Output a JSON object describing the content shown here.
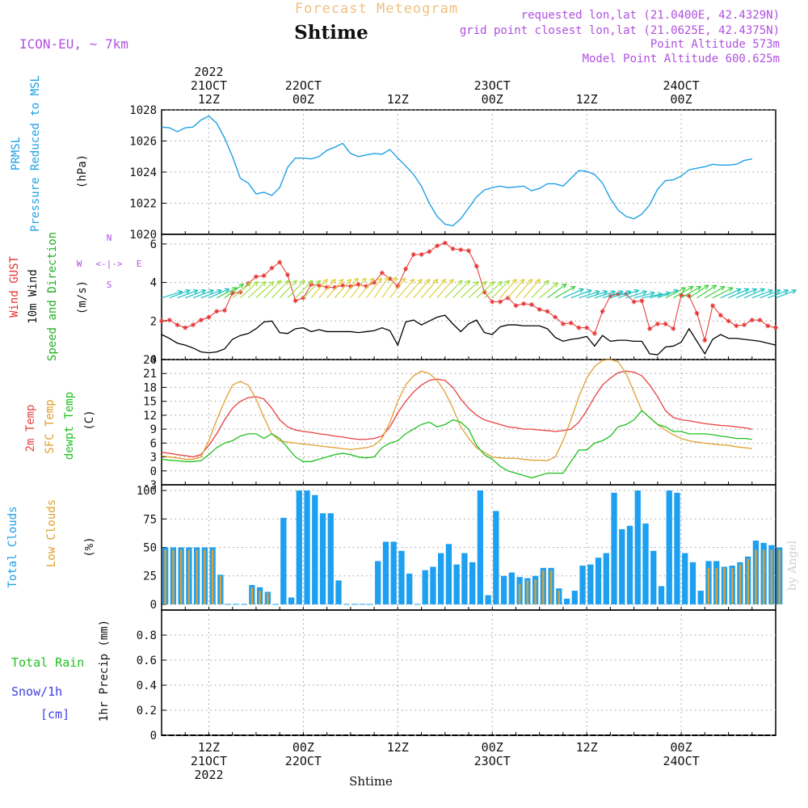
{
  "header": {
    "product": "Forecast Meteogram",
    "station": "Shtime",
    "model": "ICON-EU, ~ 7km",
    "requested": "requested lon,lat (21.0400E, 42.4329N)",
    "gridpoint": "grid point closest lon,lat (21.0625E, 42.4375N)",
    "altitude": "Point Altitude 573m",
    "model_altitude": "Model Point Altitude 600.625m",
    "credit": "by Angel",
    "footer_station": "Shtime"
  },
  "time_axis": {
    "top_labels": [
      {
        "step": 6,
        "lines": [
          "2022",
          "21OCT",
          "12Z"
        ]
      },
      {
        "step": 18,
        "lines": [
          "22OCT",
          "00Z"
        ]
      },
      {
        "step": 30,
        "lines": [
          "12Z"
        ]
      },
      {
        "step": 42,
        "lines": [
          "23OCT",
          "00Z"
        ]
      },
      {
        "step": 54,
        "lines": [
          "12Z"
        ]
      },
      {
        "step": 66,
        "lines": [
          "24OCT",
          "00Z"
        ]
      }
    ],
    "bottom_labels": [
      {
        "step": 6,
        "lines": [
          "12Z",
          "21OCT",
          "2022"
        ]
      },
      {
        "step": 18,
        "lines": [
          "00Z",
          "22OCT"
        ]
      },
      {
        "step": 30,
        "lines": [
          "12Z"
        ]
      },
      {
        "step": 42,
        "lines": [
          "00Z",
          "23OCT"
        ]
      },
      {
        "step": 54,
        "lines": [
          "12Z"
        ]
      },
      {
        "step": 66,
        "lines": [
          "00Z",
          "24OCT"
        ]
      }
    ]
  },
  "colors": {
    "pressure": "#1ea0e6",
    "gust": "#e83030",
    "wind": "#000000",
    "direction": "#20b020",
    "temp": "#e84040",
    "sfc": "#e0a030",
    "dewpt": "#20c020",
    "total_clouds": "#1ea0f0",
    "low_clouds": "#e0a030",
    "rain": "#20c020",
    "snow": "#4040e0",
    "header_purple": "#b050e0",
    "title_orange": "#f0c080"
  },
  "chart_data": [
    {
      "type": "line",
      "id": "pressure",
      "label_lines": [
        "PRMSL",
        "Pressure Reduced to MSL"
      ],
      "ylabel": "(hPa)",
      "ylim": [
        1020,
        1028
      ],
      "yticks": [
        1020,
        1022,
        1024,
        1026,
        1028
      ],
      "x_start": 0,
      "x_step": 1,
      "series": [
        {
          "values": [
            1026.9,
            1026.85,
            1026.6,
            1026.85,
            1026.9,
            1027.35,
            1027.6,
            1027.15,
            1026.2,
            1025.0,
            1023.6,
            1023.3,
            1022.6,
            1022.7,
            1022.5,
            1023.0,
            1024.3,
            1024.9,
            1024.9,
            1024.85,
            1025.0,
            1025.4,
            1025.6,
            1025.85,
            1025.2,
            1025.0,
            1025.1,
            1025.2,
            1025.15,
            1025.45,
            1024.9,
            1024.4,
            1023.85,
            1023.1,
            1022.0,
            1021.15,
            1020.65,
            1020.55,
            1021.0,
            1021.7,
            1022.4,
            1022.85,
            1023.0,
            1023.1,
            1023.0,
            1023.05,
            1023.1,
            1022.8,
            1022.95,
            1023.25,
            1023.25,
            1023.1,
            1023.6,
            1024.1,
            1024.05,
            1023.85,
            1023.3,
            1022.3,
            1021.55,
            1021.15,
            1021.0,
            1021.3,
            1021.9,
            1022.9,
            1023.45,
            1023.5,
            1023.75,
            1024.15,
            1024.25,
            1024.35,
            1024.5,
            1024.45,
            1024.45,
            1024.5,
            1024.75,
            1024.85
          ]
        }
      ]
    },
    {
      "type": "line",
      "id": "wind",
      "label_lines": [
        "Wind GUST",
        "10m Wind",
        "Speed and Direction"
      ],
      "ylabel": "(m/s)",
      "compass": [
        "N",
        "E",
        "S",
        "W"
      ],
      "ylim": [
        0,
        6.5
      ],
      "yticks": [
        0,
        2,
        4,
        6
      ],
      "x_start": 0,
      "x_step": 1,
      "series": [
        {
          "name": "Wind GUST",
          "values": [
            2.0,
            2.05,
            1.8,
            1.65,
            1.8,
            2.05,
            2.2,
            2.5,
            2.55,
            3.45,
            3.5,
            3.95,
            4.3,
            4.35,
            4.75,
            5.05,
            4.4,
            3.05,
            3.2,
            3.9,
            3.85,
            3.75,
            3.75,
            3.85,
            3.8,
            3.9,
            3.8,
            4.0,
            4.5,
            4.2,
            3.8,
            4.7,
            5.45,
            5.45,
            5.6,
            5.9,
            6.05,
            5.75,
            5.7,
            5.65,
            4.85,
            3.5,
            3.0,
            3.0,
            3.2,
            2.8,
            2.9,
            2.85,
            2.6,
            2.5,
            2.2,
            1.85,
            1.9,
            1.65,
            1.65,
            1.35,
            2.5,
            3.3,
            3.4,
            3.4,
            3.0,
            3.05,
            1.6,
            1.85,
            1.85,
            1.6,
            3.35,
            3.3,
            2.4,
            1.0,
            2.8,
            2.3,
            2.0,
            1.75,
            1.8,
            2.05,
            2.05,
            1.75,
            1.65
          ]
        },
        {
          "name": "10m Wind",
          "values": [
            1.3,
            1.1,
            0.85,
            0.75,
            0.6,
            0.4,
            0.35,
            0.4,
            0.55,
            1.05,
            1.25,
            1.35,
            1.6,
            1.95,
            2.0,
            1.4,
            1.35,
            1.6,
            1.65,
            1.45,
            1.55,
            1.45,
            1.45,
            1.45,
            1.45,
            1.4,
            1.45,
            1.5,
            1.65,
            1.5,
            0.75,
            1.95,
            2.05,
            1.8,
            2.0,
            2.2,
            2.3,
            1.85,
            1.45,
            1.85,
            2.05,
            1.4,
            1.3,
            1.7,
            1.8,
            1.8,
            1.75,
            1.75,
            1.75,
            1.6,
            1.15,
            0.95,
            1.05,
            1.1,
            1.2,
            0.7,
            1.25,
            0.95,
            1.0,
            1.0,
            0.95,
            0.95,
            0.3,
            0.25,
            0.65,
            0.7,
            0.9,
            1.6,
            0.95,
            0.3,
            1.05,
            1.3,
            1.1,
            1.1,
            1.05,
            1.0,
            0.95,
            0.85,
            0.75
          ]
        },
        {
          "name": "Speed and Direction",
          "direction_note": "arrows",
          "values": [
            3.2,
            3.3,
            3.3,
            3.3,
            3.3,
            3.3,
            3.4,
            3.5,
            3.8,
            3.9,
            4.0,
            4.0,
            4.0,
            4.1,
            4.1,
            4.1,
            4.1,
            4.1,
            4.1,
            4.2,
            4.2,
            4.2,
            4.2,
            4.3,
            4.3,
            4.3,
            4.3,
            4.4,
            4.4,
            4.3,
            4.2,
            4.2,
            4.2,
            4.2,
            4.2,
            4.2,
            4.1,
            4.1,
            4.0,
            4.0,
            4.0,
            4.0,
            4.1,
            4.2,
            4.2,
            4.2,
            4.2,
            4.1,
            3.9,
            3.8,
            3.6,
            3.4,
            3.3,
            3.2,
            3.2,
            3.2,
            3.2,
            3.2,
            3.3,
            3.2,
            3.1,
            3.0,
            3.1,
            3.3,
            3.5,
            3.6,
            3.6,
            3.7,
            3.7,
            3.6,
            3.5,
            3.4,
            3.4,
            3.4,
            3.4,
            3.3,
            3.3,
            3.3,
            3.3
          ]
        }
      ]
    },
    {
      "type": "line",
      "id": "temperature",
      "label_lines": [
        "2m Temp",
        "SFC Temp",
        "dewpt Temp"
      ],
      "ylabel": "(C)",
      "ylim": [
        -3,
        24
      ],
      "yticks": [
        -3,
        0,
        3,
        6,
        9,
        12,
        15,
        18,
        21,
        24
      ],
      "x_start": 0,
      "x_step": 1,
      "series": [
        {
          "name": "2m Temp",
          "values": [
            4.0,
            3.8,
            3.5,
            3.3,
            3.0,
            3.5,
            5.5,
            8.0,
            11.0,
            13.5,
            15.0,
            15.8,
            16.0,
            15.5,
            13.5,
            11.0,
            9.5,
            8.8,
            8.5,
            8.3,
            8.0,
            7.8,
            7.5,
            7.3,
            7.0,
            6.8,
            6.8,
            7.0,
            7.5,
            9.5,
            12.5,
            15.0,
            17.0,
            18.5,
            19.5,
            19.8,
            19.5,
            18.0,
            15.5,
            13.5,
            12.0,
            11.0,
            10.5,
            10.0,
            9.5,
            9.3,
            9.0,
            9.0,
            8.8,
            8.7,
            8.5,
            8.7,
            9.0,
            10.5,
            13.0,
            16.0,
            18.5,
            20.0,
            21.2,
            21.5,
            21.3,
            20.5,
            18.5,
            16.0,
            13.0,
            11.5,
            11.0,
            10.8,
            10.5,
            10.2,
            10.0,
            9.8,
            9.7,
            9.5,
            9.3,
            9.0
          ]
        },
        {
          "name": "SFC Temp",
          "values": [
            3.2,
            3.0,
            2.8,
            2.5,
            2.5,
            3.0,
            6.5,
            11.0,
            15.0,
            18.5,
            19.3,
            18.5,
            15.5,
            11.5,
            8.0,
            6.5,
            6.2,
            6.0,
            5.8,
            5.6,
            5.4,
            5.2,
            5.0,
            4.8,
            4.6,
            4.8,
            5.0,
            5.5,
            7.0,
            10.5,
            15.0,
            18.5,
            20.5,
            21.5,
            21.0,
            19.5,
            17.0,
            13.5,
            9.5,
            7.0,
            5.0,
            4.0,
            3.0,
            2.8,
            2.7,
            2.7,
            2.5,
            2.3,
            2.3,
            2.2,
            3.0,
            6.5,
            11.0,
            16.0,
            20.0,
            22.5,
            23.8,
            24.0,
            23.5,
            21.0,
            17.0,
            13.0,
            11.5,
            10.0,
            8.8,
            7.8,
            7.0,
            6.5,
            6.2,
            6.0,
            5.8,
            5.6,
            5.5,
            5.2,
            5.0,
            4.8
          ]
        },
        {
          "name": "dewpt Temp",
          "values": [
            2.5,
            2.3,
            2.2,
            2.0,
            2.0,
            2.2,
            3.5,
            5.0,
            6.0,
            6.5,
            7.5,
            8.0,
            8.0,
            7.0,
            8.0,
            7.0,
            5.0,
            3.0,
            2.0,
            2.0,
            2.5,
            3.0,
            3.5,
            3.8,
            3.5,
            3.0,
            2.8,
            3.0,
            5.0,
            6.0,
            6.5,
            8.0,
            9.0,
            10.0,
            10.5,
            9.5,
            10.0,
            11.0,
            10.5,
            9.0,
            5.5,
            3.5,
            2.5,
            1.0,
            0.0,
            -0.5,
            -1.0,
            -1.5,
            -1.0,
            -0.5,
            -0.5,
            -0.5,
            2.0,
            4.5,
            4.5,
            6.0,
            6.5,
            7.5,
            9.5,
            10.0,
            11.0,
            13.0,
            11.5,
            10.0,
            9.5,
            8.5,
            8.5,
            8.0,
            8.0,
            8.0,
            7.8,
            7.5,
            7.3,
            7.0,
            7.0,
            6.8
          ]
        }
      ]
    },
    {
      "type": "bar",
      "id": "clouds",
      "label_lines": [
        "Total Clouds",
        "Low Clouds"
      ],
      "ylabel": "(%)",
      "ylim": [
        -5,
        105
      ],
      "yticks": [
        0,
        25,
        50,
        75,
        100
      ],
      "x_start": 0,
      "x_step": 1,
      "series": [
        {
          "name": "Total Clouds",
          "values": [
            50,
            50,
            50,
            50,
            50,
            50,
            50,
            26,
            0,
            0,
            0,
            17,
            15,
            11,
            0,
            76,
            6,
            100,
            100,
            96,
            80,
            80,
            21,
            0,
            0,
            0,
            0,
            38,
            55,
            55,
            47,
            27,
            0,
            30,
            33,
            45,
            53,
            35,
            45,
            37,
            100,
            8,
            82,
            25,
            28,
            24,
            23,
            25,
            32,
            32,
            14,
            5,
            12,
            34,
            35,
            41,
            45,
            98,
            66,
            69,
            100,
            71,
            47,
            16,
            100,
            98,
            45,
            37,
            12,
            38,
            38,
            33,
            34,
            37,
            42,
            56,
            54,
            52,
            50
          ]
        },
        {
          "name": "Low Clouds",
          "values": [
            48,
            48,
            48,
            48,
            48,
            48,
            48,
            25,
            0,
            0,
            0,
            15,
            12,
            10,
            0,
            0,
            0,
            0,
            0,
            0,
            0,
            0,
            0,
            0,
            0,
            0,
            0,
            0,
            0,
            0,
            0,
            0,
            0,
            0,
            0,
            0,
            0,
            0,
            0,
            0,
            0,
            0,
            0,
            0,
            0,
            18,
            21,
            22,
            30,
            30,
            12,
            0,
            0,
            0,
            0,
            0,
            0,
            0,
            0,
            0,
            0,
            0,
            0,
            0,
            0,
            0,
            0,
            0,
            0,
            32,
            32,
            32,
            32,
            35,
            40,
            48,
            48,
            48,
            48
          ]
        }
      ]
    },
    {
      "type": "bar",
      "id": "precip",
      "label_lines": [
        "Total Rain",
        "Snow/1h",
        "[cm]"
      ],
      "ylabel": "1hr Precip (mm)",
      "ylim": [
        0,
        1
      ],
      "yticks": [
        0,
        0.2,
        0.4,
        0.6,
        0.8
      ],
      "ytick_labels": [
        "0",
        "0.2",
        "0.4",
        "0.6",
        "0.8"
      ],
      "x_start": 0,
      "x_step": 1,
      "series": [
        {
          "name": "Total Rain",
          "values": [
            0,
            0,
            0,
            0,
            0,
            0,
            0,
            0,
            0,
            0,
            0,
            0,
            0,
            0,
            0,
            0,
            0,
            0,
            0,
            0,
            0,
            0,
            0,
            0,
            0,
            0,
            0,
            0,
            0,
            0,
            0,
            0,
            0,
            0,
            0,
            0,
            0,
            0,
            0,
            0,
            0,
            0,
            0,
            0,
            0,
            0,
            0,
            0,
            0,
            0,
            0,
            0,
            0,
            0,
            0,
            0,
            0,
            0,
            0,
            0,
            0,
            0,
            0,
            0,
            0,
            0,
            0,
            0,
            0,
            0,
            0,
            0,
            0,
            0,
            0,
            0,
            0,
            0,
            0
          ]
        },
        {
          "name": "Snow/1h",
          "values": [
            0,
            0,
            0,
            0,
            0,
            0,
            0,
            0,
            0,
            0,
            0,
            0,
            0,
            0,
            0,
            0,
            0,
            0,
            0,
            0,
            0,
            0,
            0,
            0,
            0,
            0,
            0,
            0,
            0,
            0,
            0,
            0,
            0,
            0,
            0,
            0,
            0,
            0,
            0,
            0,
            0,
            0,
            0,
            0,
            0,
            0,
            0,
            0,
            0,
            0,
            0,
            0,
            0,
            0,
            0,
            0,
            0,
            0,
            0,
            0,
            0,
            0,
            0,
            0,
            0,
            0,
            0,
            0,
            0,
            0,
            0,
            0,
            0,
            0,
            0,
            0,
            0,
            0,
            0
          ]
        }
      ]
    }
  ]
}
